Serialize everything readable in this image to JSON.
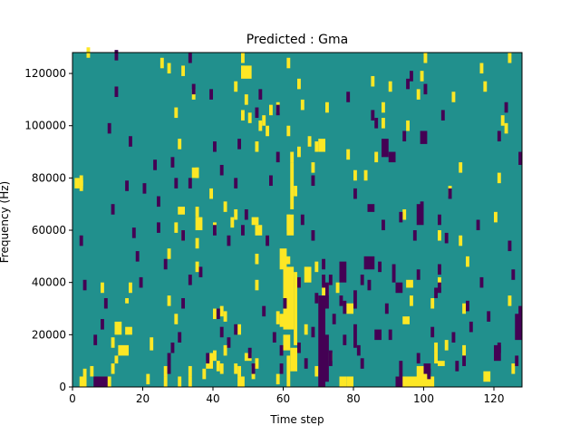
{
  "chart_data": {
    "type": "heatmap",
    "title": "Predicted : Gma",
    "xlabel": "Time step",
    "ylabel": "Frequency (Hz)",
    "xlim": [
      0,
      128
    ],
    "ylim": [
      0,
      128000
    ],
    "xticks": [
      0,
      20,
      40,
      60,
      80,
      100,
      120
    ],
    "yticks": [
      0,
      20000,
      40000,
      60000,
      80000,
      100000,
      120000
    ],
    "xtick_labels": [
      "0",
      "20",
      "40",
      "60",
      "80",
      "100",
      "120"
    ],
    "ytick_labels": [
      "0",
      "20000",
      "40000",
      "60000",
      "80000",
      "100000",
      "120000"
    ],
    "colormap": "viridis",
    "colors": {
      "background": "#21908d",
      "high": "#fde725",
      "low": "#440154"
    },
    "grid": false,
    "cell_height_hz": 1000,
    "high_cells": [
      [
        2,
        75
      ],
      [
        2,
        76
      ],
      [
        2,
        77
      ],
      [
        3,
        3
      ],
      [
        4,
        126
      ],
      [
        5,
        4
      ],
      [
        8,
        36
      ],
      [
        11,
        5
      ],
      [
        11,
        15
      ],
      [
        21,
        1
      ],
      [
        25,
        122
      ],
      [
        26,
        4
      ],
      [
        27,
        120
      ],
      [
        27,
        49
      ],
      [
        29,
        24
      ],
      [
        29,
        103
      ],
      [
        30,
        91
      ],
      [
        31,
        119
      ],
      [
        33,
        4
      ],
      [
        34,
        110
      ],
      [
        35,
        44
      ],
      [
        35,
        53
      ],
      [
        35,
        65
      ],
      [
        35,
        80
      ],
      [
        37,
        3
      ],
      [
        39,
        9
      ],
      [
        39,
        72
      ],
      [
        40,
        10
      ],
      [
        40,
        26
      ],
      [
        40,
        59
      ],
      [
        41,
        6
      ],
      [
        42,
        5
      ],
      [
        42,
        27
      ],
      [
        43,
        67
      ],
      [
        43,
        12
      ],
      [
        43,
        25
      ],
      [
        45,
        61
      ],
      [
        46,
        5
      ],
      [
        46,
        64
      ],
      [
        46,
        113
      ],
      [
        47,
        4
      ],
      [
        47,
        20
      ],
      [
        48,
        124
      ],
      [
        48,
        102
      ],
      [
        48,
        119
      ],
      [
        49,
        108
      ],
      [
        50,
        101
      ],
      [
        51,
        3
      ],
      [
        51,
        4
      ],
      [
        52,
        90
      ],
      [
        52,
        7
      ],
      [
        52,
        37
      ],
      [
        52,
        47
      ],
      [
        53,
        98
      ],
      [
        54,
        100
      ],
      [
        55,
        96
      ],
      [
        56,
        104
      ],
      [
        58,
        105
      ],
      [
        58,
        1
      ],
      [
        61,
        122
      ],
      [
        61,
        96
      ],
      [
        63,
        73
      ],
      [
        64,
        114
      ],
      [
        64,
        88
      ],
      [
        65,
        106
      ],
      [
        66,
        20
      ],
      [
        67,
        92
      ],
      [
        68,
        82
      ],
      [
        69,
        4
      ],
      [
        69,
        90
      ],
      [
        69,
        44
      ],
      [
        72,
        105
      ],
      [
        75,
        36
      ],
      [
        78,
        87
      ],
      [
        80,
        79
      ],
      [
        83,
        79
      ],
      [
        85,
        115
      ],
      [
        86,
        86
      ],
      [
        88,
        99
      ],
      [
        88,
        105
      ],
      [
        90,
        113
      ],
      [
        94,
        64
      ],
      [
        95,
        98
      ],
      [
        96,
        31
      ],
      [
        98,
        110
      ],
      [
        99,
        117
      ],
      [
        100,
        124
      ],
      [
        102,
        30
      ],
      [
        103,
        9
      ],
      [
        103,
        13
      ],
      [
        104,
        38
      ],
      [
        104,
        56
      ],
      [
        106,
        14
      ],
      [
        107,
        73
      ],
      [
        108,
        109
      ],
      [
        110,
        54
      ],
      [
        110,
        82
      ],
      [
        111,
        12
      ],
      [
        111,
        28
      ],
      [
        112,
        46
      ],
      [
        116,
        120
      ],
      [
        117,
        113
      ],
      [
        120,
        63
      ],
      [
        121,
        78
      ],
      [
        122,
        100
      ],
      [
        123,
        97
      ],
      [
        124,
        124
      ],
      [
        124,
        31
      ],
      [
        125,
        5
      ]
    ],
    "high_rects": [
      [
        0.6,
        2,
        76,
        80
      ],
      [
        2,
        4,
        0,
        4
      ],
      [
        8,
        11,
        0,
        4
      ],
      [
        13,
        16,
        12,
        16
      ],
      [
        15,
        17,
        20,
        23
      ],
      [
        26,
        27,
        0,
        4
      ],
      [
        30,
        31,
        0,
        4
      ],
      [
        33,
        34,
        0,
        4
      ],
      [
        38,
        40,
        7,
        10
      ],
      [
        47,
        49,
        0,
        4
      ],
      [
        48,
        51,
        118,
        123
      ],
      [
        58,
        59,
        24,
        29
      ],
      [
        59,
        60,
        23,
        28
      ],
      [
        59,
        61,
        45,
        53
      ],
      [
        61,
        62,
        0,
        12
      ],
      [
        60,
        62,
        14,
        20
      ],
      [
        60,
        63,
        22,
        46
      ],
      [
        60,
        62,
        47,
        50
      ],
      [
        61,
        63,
        58,
        66
      ],
      [
        62,
        63,
        68,
        86
      ],
      [
        61,
        62,
        60,
        66
      ],
      [
        62,
        64,
        6,
        15
      ],
      [
        63,
        64,
        16,
        44
      ],
      [
        62,
        63,
        86,
        90
      ],
      [
        76,
        78,
        0,
        4
      ],
      [
        78,
        80,
        0,
        4
      ],
      [
        92,
        96,
        0,
        4
      ],
      [
        96,
        101,
        0,
        4
      ],
      [
        99,
        103,
        0,
        4
      ],
      [
        98,
        101,
        0,
        8
      ],
      [
        94,
        96,
        24,
        27
      ],
      [
        95,
        97,
        38,
        41
      ],
      [
        104,
        106,
        8,
        10
      ],
      [
        117,
        119,
        2,
        6
      ],
      [
        12,
        14,
        20,
        25
      ],
      [
        12,
        13,
        9,
        12
      ],
      [
        15,
        16,
        32,
        34
      ],
      [
        16,
        17,
        36,
        40
      ],
      [
        22,
        23,
        14,
        19
      ],
      [
        27,
        28,
        31,
        35
      ],
      [
        29,
        30,
        59,
        63
      ],
      [
        31,
        32,
        56,
        60
      ],
      [
        30,
        32,
        66,
        69
      ],
      [
        49,
        51,
        10,
        13
      ],
      [
        35,
        37,
        60,
        65
      ],
      [
        34,
        36,
        80,
        84
      ],
      [
        52,
        54,
        58,
        62
      ],
      [
        51,
        53,
        62,
        65
      ],
      [
        66,
        68,
        40,
        46
      ],
      [
        71,
        73,
        35,
        39
      ],
      [
        70,
        72,
        90,
        95
      ],
      [
        73,
        74,
        10,
        13
      ],
      [
        78,
        80,
        28,
        32
      ]
    ],
    "low_cells": [
      [
        2,
        54
      ],
      [
        3,
        37
      ],
      [
        6,
        16
      ],
      [
        8,
        22
      ],
      [
        9,
        30
      ],
      [
        10,
        97
      ],
      [
        11,
        66
      ],
      [
        12,
        111
      ],
      [
        12,
        125
      ],
      [
        15,
        75
      ],
      [
        16,
        92
      ],
      [
        17,
        57
      ],
      [
        18,
        48
      ],
      [
        19,
        38
      ],
      [
        20,
        74
      ],
      [
        23,
        83
      ],
      [
        24,
        69
      ],
      [
        24,
        59
      ],
      [
        26,
        45
      ],
      [
        27,
        5
      ],
      [
        27,
        9
      ],
      [
        28,
        13
      ],
      [
        28,
        84
      ],
      [
        29,
        76
      ],
      [
        30,
        17
      ],
      [
        31,
        30
      ],
      [
        31,
        56
      ],
      [
        33,
        39
      ],
      [
        33,
        124
      ],
      [
        33,
        76
      ],
      [
        34,
        112
      ],
      [
        36,
        42
      ],
      [
        38,
        9
      ],
      [
        39,
        110
      ],
      [
        40,
        58
      ],
      [
        40,
        90
      ],
      [
        41,
        26
      ],
      [
        42,
        19
      ],
      [
        42,
        81
      ],
      [
        44,
        15
      ],
      [
        44,
        54
      ],
      [
        46,
        20
      ],
      [
        46,
        76
      ],
      [
        47,
        91
      ],
      [
        48,
        58
      ],
      [
        49,
        64
      ],
      [
        50,
        11
      ],
      [
        51,
        5
      ],
      [
        52,
        103
      ],
      [
        53,
        110
      ],
      [
        54,
        27
      ],
      [
        55,
        54
      ],
      [
        56,
        77
      ],
      [
        57,
        17
      ],
      [
        58,
        86
      ],
      [
        58,
        104
      ],
      [
        59,
        12
      ],
      [
        59,
        5
      ],
      [
        60,
        30
      ],
      [
        64,
        13
      ],
      [
        64,
        38
      ],
      [
        65,
        62
      ],
      [
        66,
        7
      ],
      [
        68,
        19
      ],
      [
        68,
        77
      ],
      [
        68,
        56
      ],
      [
        69,
        32
      ],
      [
        71,
        45
      ],
      [
        73,
        39
      ],
      [
        74,
        24
      ],
      [
        76,
        31
      ],
      [
        77,
        16
      ],
      [
        78,
        109
      ],
      [
        80,
        72
      ],
      [
        81,
        12
      ],
      [
        82,
        7
      ],
      [
        82,
        39
      ],
      [
        84,
        37
      ],
      [
        85,
        102
      ],
      [
        86,
        99
      ],
      [
        87,
        44
      ],
      [
        88,
        60
      ],
      [
        89,
        28
      ],
      [
        90,
        18
      ],
      [
        93,
        63
      ],
      [
        94,
        94
      ],
      [
        95,
        114
      ],
      [
        96,
        117
      ],
      [
        97,
        56
      ],
      [
        98,
        9
      ],
      [
        98,
        41
      ],
      [
        99,
        67
      ],
      [
        100,
        112
      ],
      [
        101,
        3
      ],
      [
        102,
        19
      ],
      [
        103,
        34
      ],
      [
        104,
        43
      ],
      [
        104,
        62
      ],
      [
        105,
        102
      ],
      [
        106,
        55
      ],
      [
        107,
        72
      ],
      [
        108,
        17
      ],
      [
        109,
        6
      ],
      [
        111,
        8
      ],
      [
        112,
        29
      ],
      [
        113,
        21
      ],
      [
        115,
        60
      ],
      [
        116,
        38
      ],
      [
        118,
        25
      ],
      [
        121,
        13
      ],
      [
        121,
        94
      ],
      [
        123,
        105
      ],
      [
        124,
        52
      ],
      [
        125,
        41
      ],
      [
        126,
        8
      ],
      [
        127,
        27
      ]
    ],
    "low_rects": [
      [
        6,
        10,
        0,
        4
      ],
      [
        70,
        72,
        0,
        35
      ],
      [
        72,
        73,
        2,
        20
      ],
      [
        73,
        74,
        8,
        14
      ],
      [
        71,
        72,
        38,
        43
      ],
      [
        72,
        73,
        30,
        40
      ],
      [
        77,
        78,
        28,
        33
      ],
      [
        80,
        81,
        15,
        24
      ],
      [
        86,
        88,
        18,
        22
      ],
      [
        83,
        86,
        45,
        50
      ],
      [
        84,
        86,
        67,
        70
      ],
      [
        88,
        90,
        88,
        95
      ],
      [
        91,
        92,
        40,
        47
      ],
      [
        92,
        94,
        36,
        40
      ],
      [
        98,
        100,
        62,
        70
      ],
      [
        99,
        101,
        93,
        98
      ],
      [
        92,
        94,
        0,
        4
      ],
      [
        90,
        92,
        86,
        90
      ],
      [
        104,
        105,
        36,
        40
      ],
      [
        127,
        128,
        85,
        90
      ],
      [
        126,
        128,
        18,
        28
      ],
      [
        120,
        122,
        10,
        16
      ],
      [
        76,
        78,
        40,
        48
      ],
      [
        80,
        81,
        30,
        37
      ],
      [
        93,
        94,
        4,
        10
      ],
      [
        100,
        102,
        5,
        9
      ]
    ]
  }
}
